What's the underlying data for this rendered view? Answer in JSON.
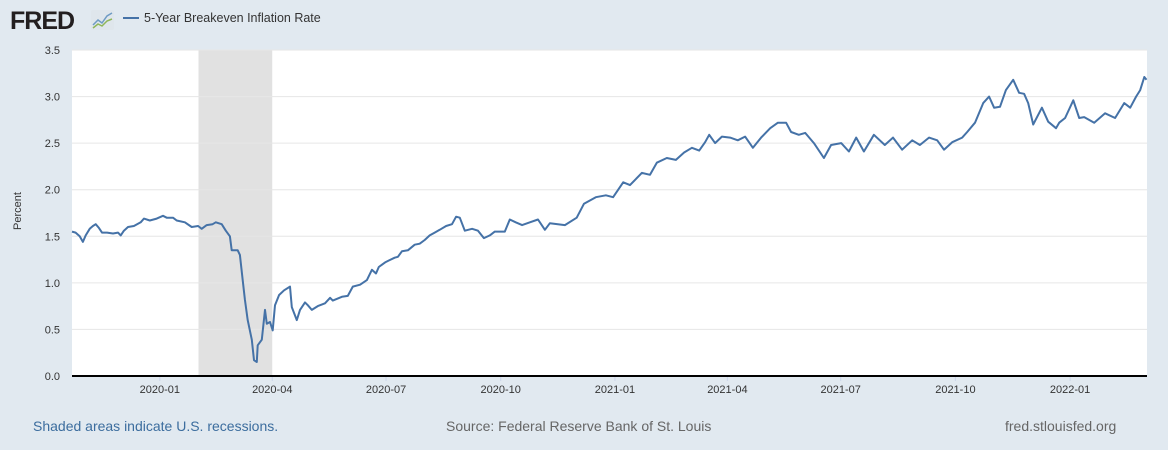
{
  "header": {
    "logo_text": "FRED",
    "series_name": "5-Year Breakeven Inflation Rate"
  },
  "footer": {
    "recession_note": "Shaded areas indicate U.S. recessions.",
    "source": "Source: Federal Reserve Bank of St. Louis",
    "site": "fred.stlouisfed.org"
  },
  "colors": {
    "line": "#4572a7",
    "recession": "#e1e1e1",
    "grid": "#e6e6e6",
    "background": "#e1e9f0"
  },
  "chart_data": {
    "type": "line",
    "title": "5-Year Breakeven Inflation Rate",
    "xlabel": "",
    "ylabel": "Percent",
    "x_units": "decimal year",
    "xlim": [
      2019.807,
      2022.169
    ],
    "ylim": [
      0,
      3.5
    ],
    "grid": true,
    "legend": "top-left",
    "yticks": [
      {
        "v": 0,
        "label": "0.0"
      },
      {
        "v": 0.5,
        "label": "0.5"
      },
      {
        "v": 1,
        "label": "1.0"
      },
      {
        "v": 1.5,
        "label": "1.5"
      },
      {
        "v": 2,
        "label": "2.0"
      },
      {
        "v": 2.5,
        "label": "2.5"
      },
      {
        "v": 3,
        "label": "3.0"
      },
      {
        "v": 3.5,
        "label": "3.5"
      }
    ],
    "xticks": [
      {
        "v": 2020.0,
        "label": "2020-01"
      },
      {
        "v": 2020.247,
        "label": "2020-04"
      },
      {
        "v": 2020.497,
        "label": "2020-07"
      },
      {
        "v": 2020.749,
        "label": "2020-10"
      },
      {
        "v": 2021.0,
        "label": "2021-01"
      },
      {
        "v": 2021.247,
        "label": "2021-04"
      },
      {
        "v": 2021.496,
        "label": "2021-07"
      },
      {
        "v": 2021.748,
        "label": "2021-10"
      },
      {
        "v": 2022.0,
        "label": "2022-01"
      }
    ],
    "recessions": [
      [
        2020.085,
        2020.247
      ]
    ],
    "series": [
      {
        "name": "5-Year Breakeven Inflation Rate",
        "x": [
          2019.807,
          2019.815,
          2019.824,
          2019.831,
          2019.837,
          2019.846,
          2019.853,
          2019.859,
          2019.866,
          2019.873,
          2019.884,
          2019.897,
          2019.908,
          2019.914,
          2019.921,
          2019.93,
          2019.943,
          2019.958,
          2019.965,
          2019.978,
          2019.993,
          2020.007,
          2020.015,
          2020.029,
          2020.037,
          2020.055,
          2020.07,
          2020.084,
          2020.092,
          2020.103,
          2020.116,
          2020.123,
          2020.136,
          2020.145,
          2020.154,
          2020.158,
          2020.171,
          2020.176,
          2020.182,
          2020.187,
          2020.193,
          2020.202,
          2020.207,
          2020.213,
          2020.215,
          2020.224,
          2020.231,
          2020.235,
          2020.242,
          2020.248,
          2020.253,
          2020.262,
          2020.273,
          2020.286,
          2020.29,
          2020.301,
          2020.308,
          2020.319,
          2020.325,
          2020.334,
          2020.347,
          2020.363,
          2020.374,
          2020.38,
          2020.4,
          2020.413,
          2020.424,
          2020.44,
          2020.455,
          2020.466,
          2020.475,
          2020.481,
          2020.495,
          2020.503,
          2020.516,
          2020.523,
          2020.532,
          2020.545,
          2020.56,
          2020.571,
          2020.582,
          2020.593,
          2020.604,
          2020.615,
          2020.629,
          2020.642,
          2020.651,
          2020.659,
          2020.67,
          2020.686,
          2020.699,
          2020.712,
          2020.725,
          2020.736,
          2020.758,
          2020.769,
          2020.782,
          2020.796,
          2020.813,
          2020.831,
          2020.846,
          2020.857,
          2020.89,
          2020.916,
          2020.932,
          2020.958,
          2020.98,
          2020.996,
          2021.018,
          2021.033,
          2021.059,
          2021.077,
          2021.092,
          2021.114,
          2021.134,
          2021.152,
          2021.169,
          2021.185,
          2021.198,
          2021.207,
          2021.22,
          2021.235,
          2021.253,
          2021.27,
          2021.286,
          2021.303,
          2021.321,
          2021.341,
          2021.358,
          2021.376,
          2021.387,
          2021.404,
          2021.418,
          2021.437,
          2021.459,
          2021.475,
          2021.497,
          2021.514,
          2021.53,
          2021.547,
          2021.569,
          2021.593,
          2021.611,
          2021.631,
          2021.653,
          2021.67,
          2021.69,
          2021.708,
          2021.723,
          2021.741,
          2021.763,
          2021.774,
          2021.791,
          2021.809,
          2021.822,
          2021.833,
          2021.846,
          2021.859,
          2021.875,
          2021.888,
          2021.899,
          2021.908,
          2021.919,
          2021.938,
          2021.952,
          2021.969,
          2021.976,
          2021.989,
          2022.007,
          2022.02,
          2022.031,
          2022.053,
          2022.077,
          2022.099,
          2022.119,
          2022.132,
          2022.145,
          2022.154,
          2022.163,
          2022.168
        ],
        "y": [
          1.55,
          1.54,
          1.5,
          1.44,
          1.51,
          1.58,
          1.61,
          1.63,
          1.59,
          1.54,
          1.54,
          1.53,
          1.54,
          1.51,
          1.56,
          1.6,
          1.61,
          1.65,
          1.69,
          1.67,
          1.69,
          1.72,
          1.7,
          1.7,
          1.67,
          1.65,
          1.6,
          1.61,
          1.58,
          1.62,
          1.63,
          1.65,
          1.63,
          1.56,
          1.5,
          1.35,
          1.35,
          1.3,
          1.03,
          0.82,
          0.6,
          0.39,
          0.17,
          0.15,
          0.33,
          0.39,
          0.71,
          0.56,
          0.58,
          0.49,
          0.76,
          0.87,
          0.92,
          0.96,
          0.74,
          0.6,
          0.71,
          0.79,
          0.76,
          0.71,
          0.75,
          0.78,
          0.84,
          0.81,
          0.85,
          0.86,
          0.96,
          0.98,
          1.03,
          1.14,
          1.1,
          1.17,
          1.22,
          1.24,
          1.27,
          1.28,
          1.34,
          1.35,
          1.41,
          1.42,
          1.46,
          1.51,
          1.54,
          1.57,
          1.61,
          1.63,
          1.71,
          1.7,
          1.56,
          1.58,
          1.56,
          1.48,
          1.51,
          1.55,
          1.55,
          1.68,
          1.65,
          1.62,
          1.65,
          1.68,
          1.57,
          1.64,
          1.62,
          1.7,
          1.85,
          1.92,
          1.94,
          1.92,
          2.08,
          2.05,
          2.18,
          2.16,
          2.29,
          2.34,
          2.32,
          2.4,
          2.45,
          2.42,
          2.51,
          2.59,
          2.5,
          2.57,
          2.56,
          2.53,
          2.57,
          2.45,
          2.56,
          2.66,
          2.72,
          2.72,
          2.62,
          2.59,
          2.61,
          2.5,
          2.34,
          2.48,
          2.5,
          2.41,
          2.56,
          2.41,
          2.59,
          2.48,
          2.56,
          2.43,
          2.53,
          2.48,
          2.56,
          2.53,
          2.43,
          2.51,
          2.56,
          2.62,
          2.72,
          2.93,
          3.0,
          2.88,
          2.89,
          3.07,
          3.18,
          3.04,
          3.03,
          2.93,
          2.7,
          2.88,
          2.73,
          2.66,
          2.72,
          2.77,
          2.96,
          2.77,
          2.78,
          2.72,
          2.82,
          2.77,
          2.93,
          2.88,
          3.0,
          3.07,
          3.21,
          3.18
        ]
      }
    ]
  }
}
